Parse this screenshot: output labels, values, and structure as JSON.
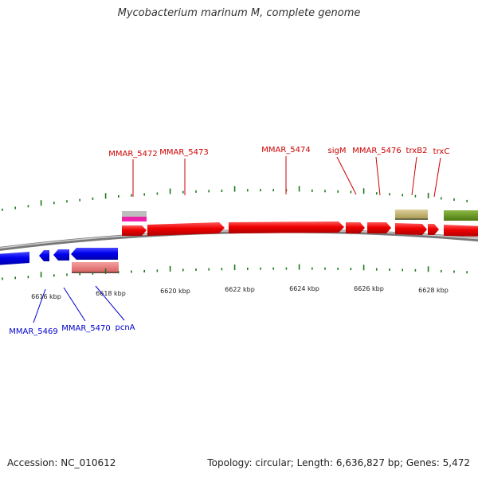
{
  "title": "Mycobacterium marinum M, complete genome",
  "footer": {
    "accession": "Accession: NC_010612",
    "summary": "Topology: circular; Length: 6,636,827 bp; Genes: 5,472"
  },
  "colors": {
    "forward_gene": "#ee0000",
    "reverse_gene": "#0000ee",
    "forward_label": "#cc0000",
    "reverse_label": "#0000cc",
    "tick": "#1a7a1a",
    "backbone": "#888888",
    "other_feature": "#c8b878",
    "other_feature_2": "#6e9a22",
    "rev_feature": "#e88080",
    "small_feature_gray": "#bbbbbb",
    "small_feature_pink": "#ee22aa"
  },
  "axis": {
    "ticks_kbp": [
      6616,
      6618,
      6620,
      6622,
      6624,
      6626,
      6628
    ],
    "tick_labels": [
      "6616 kbp",
      "6618 kbp",
      "6620 kbp",
      "6622 kbp",
      "6624 kbp",
      "6626 kbp",
      "6628 kbp"
    ]
  },
  "forward_labels": [
    "MMAR_5472",
    "MMAR_5473",
    "MMAR_5474",
    "sigM",
    "MMAR_5476",
    "trxB2",
    "trxC"
  ],
  "reverse_labels": [
    "MMAR_5469",
    "MMAR_5470",
    "pcnA"
  ]
}
